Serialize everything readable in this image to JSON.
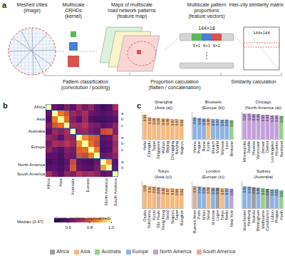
{
  "panel_a": {
    "label": "a",
    "stages": [
      {
        "lines": [
          "Meshed cities",
          "(image)"
        ]
      },
      {
        "lines": [
          "Multiscale",
          "CRHDs",
          "(kernel)"
        ]
      },
      {
        "lines": [
          "Maps of multiscale",
          "road network patterns",
          "(feature map)"
        ]
      },
      {
        "lines": [
          "Multiscale pattern",
          "proportions",
          "(feature vectors)"
        ]
      },
      {
        "lines": [
          "Inter-city similarity matrix"
        ]
      }
    ],
    "vector_size": "144×18",
    "segments": [
      "6×1",
      "6×1",
      "6×1"
    ],
    "matrix_size": "144×144",
    "steps": [
      {
        "lines": [
          "Pattern classification",
          "(convolution / pooling)"
        ]
      },
      {
        "lines": [
          "Proportion calculation",
          "(flatten / concatenation)"
        ]
      },
      {
        "lines": [
          "Similarity calculation"
        ]
      }
    ]
  },
  "chart_data": [
    {
      "type": "heatmap",
      "panel": "b",
      "groups": [
        {
          "name": "Africa",
          "cells": 1
        },
        {
          "name": "Asia",
          "cells": 3
        },
        {
          "name": "Australia",
          "cells": 1
        },
        {
          "name": "Europe",
          "cells": 4
        },
        {
          "name": "North America",
          "cells": 2
        },
        {
          "name": "South America",
          "cells": 1
        }
      ],
      "z": [
        [
          1.0,
          0.62,
          0.58,
          0.66,
          0.6,
          0.7,
          0.64,
          0.68,
          0.6,
          0.55,
          0.58,
          0.72
        ],
        [
          0.62,
          1.0,
          0.86,
          0.8,
          0.7,
          0.66,
          0.72,
          0.62,
          0.6,
          0.58,
          0.6,
          0.64
        ],
        [
          0.58,
          0.86,
          1.0,
          0.84,
          0.66,
          0.6,
          0.7,
          0.58,
          0.56,
          0.55,
          0.57,
          0.6
        ],
        [
          0.66,
          0.8,
          0.84,
          1.0,
          0.72,
          0.7,
          0.74,
          0.66,
          0.64,
          0.6,
          0.62,
          0.68
        ],
        [
          0.6,
          0.7,
          0.66,
          0.72,
          1.0,
          0.68,
          0.7,
          0.64,
          0.62,
          0.78,
          0.8,
          0.66
        ],
        [
          0.7,
          0.66,
          0.6,
          0.7,
          0.68,
          1.0,
          0.88,
          0.82,
          0.8,
          0.6,
          0.62,
          0.74
        ],
        [
          0.64,
          0.72,
          0.7,
          0.74,
          0.7,
          0.88,
          1.0,
          0.84,
          0.78,
          0.58,
          0.6,
          0.7
        ],
        [
          0.68,
          0.62,
          0.58,
          0.66,
          0.64,
          0.82,
          0.84,
          1.0,
          0.86,
          0.56,
          0.58,
          0.72
        ],
        [
          0.6,
          0.6,
          0.56,
          0.64,
          0.62,
          0.8,
          0.78,
          0.86,
          1.0,
          0.62,
          0.64,
          0.68
        ],
        [
          0.55,
          0.58,
          0.55,
          0.6,
          0.78,
          0.6,
          0.58,
          0.56,
          0.62,
          1.0,
          0.9,
          0.6
        ],
        [
          0.58,
          0.6,
          0.57,
          0.62,
          0.8,
          0.62,
          0.6,
          0.58,
          0.64,
          0.9,
          1.0,
          0.62
        ],
        [
          0.72,
          0.64,
          0.6,
          0.68,
          0.66,
          0.74,
          0.7,
          0.72,
          0.68,
          0.6,
          0.62,
          1.0
        ]
      ],
      "zlim": [
        0.47,
        1
      ],
      "colorbar_ticks": [
        0.6,
        0.8,
        {
          "value": 1,
          "label": "1.0"
        }
      ],
      "colorbar_title": "Cosine similarity (normalized)",
      "colorbar_min_label": "Median (0.47)",
      "side_labels": [
        {
          "row": 1,
          "label": "a"
        },
        {
          "row": 2,
          "label": "b"
        },
        {
          "row": 3,
          "label": "c"
        },
        {
          "row": 5,
          "label": "a"
        },
        {
          "row": 6,
          "label": "b"
        },
        {
          "row": 7,
          "label": "c"
        },
        {
          "row": 9,
          "label": "a"
        },
        {
          "row": 10,
          "label": "b"
        }
      ]
    },
    {
      "type": "bar",
      "title": "Shanghai (Asia (a))",
      "categories": [
        "Hefei",
        "Chengdu",
        "Taipei",
        "Singapore",
        "Wuhan",
        "Beijing",
        "Chongqing",
        "Nanjing",
        "Nagoya"
      ],
      "values": [
        0.95,
        0.9,
        0.89,
        0.89,
        0.88,
        0.88,
        0.87,
        0.87,
        0.86
      ],
      "value_labels": [
        "0.95",
        "0.90",
        "0.89",
        "0.89",
        "0.88",
        "0.88",
        "0.87",
        "0.87",
        "0.86"
      ],
      "colors": [
        "#f5b97f",
        "#f5b97f",
        "#f5b97f",
        "#f5b97f",
        "#f5b97f",
        "#f5b97f",
        "#f5b97f",
        "#f5b97f",
        "#f5b97f"
      ],
      "ylim": [
        0.5,
        1
      ],
      "yticks": [
        0.5,
        0.75,
        1
      ],
      "grid": true,
      "data_labels": true,
      "tick_labels": "x"
    },
    {
      "type": "bar",
      "title": "Brussels (Europe (b))",
      "categories": [
        "Vienna",
        "Prague",
        "Rome",
        "Kyoto",
        "Munich",
        "Madrid",
        "Warsaw",
        "Lyon",
        "Brisbane"
      ],
      "values": [
        0.9,
        0.89,
        0.88,
        0.88,
        0.87,
        0.87,
        0.86,
        0.86,
        0.85
      ],
      "value_labels": [
        "0.90",
        "0.89",
        "0.88",
        "0.88",
        "0.87",
        "0.87",
        "0.86",
        "0.86",
        "0.85"
      ],
      "colors": [
        "#8db3e2",
        "#8db3e2",
        "#8db3e2",
        "#f5b97f",
        "#8db3e2",
        "#8db3e2",
        "#8db3e2",
        "#8db3e2",
        "#93d18b"
      ],
      "ylim": [
        0.5,
        1
      ],
      "yticks": [
        0.5,
        0.75,
        1
      ],
      "grid": true,
      "data_labels": true,
      "tick_labels": "x"
    },
    {
      "type": "bar",
      "title": "Chicago (North America (a))",
      "categories": [
        "Minneapolis",
        "Seattle",
        "Phoenix",
        "Vancouver",
        "Denver",
        "Detroit",
        "Los Angeles",
        "Houston",
        "Auckland"
      ],
      "values": [
        0.97,
        0.97,
        0.96,
        0.96,
        0.95,
        0.95,
        0.94,
        0.94,
        0.93
      ],
      "value_labels": [
        "0.97",
        "0.97",
        "0.96",
        "0.96",
        "0.95",
        "0.95",
        "0.94",
        "0.94",
        "0.93"
      ],
      "colors": [
        "#c3a0dc",
        "#c3a0dc",
        "#c3a0dc",
        "#c3a0dc",
        "#c3a0dc",
        "#c3a0dc",
        "#c3a0dc",
        "#c3a0dc",
        "#93d18b"
      ],
      "ylim": [
        0.5,
        1
      ],
      "yticks": [
        0.5,
        0.75,
        1
      ],
      "grid": true,
      "data_labels": true,
      "tick_labels": "x"
    },
    {
      "type": "bar",
      "title": "Tokyo (Asia (c))",
      "categories": [
        "Osaka",
        "Yokohama",
        "Kyoto",
        "São Paulo",
        "Hong Kong",
        "Seoul",
        "Nagoya",
        "Taipei",
        "Bangkok"
      ],
      "values": [
        0.93,
        0.91,
        0.9,
        0.89,
        0.88,
        0.87,
        0.87,
        0.86,
        0.86
      ],
      "value_labels": [
        "0.93",
        "0.91",
        "0.90",
        "0.89",
        "0.88",
        "0.87",
        "0.87",
        "0.86",
        "0.86"
      ],
      "colors": [
        "#f5b97f",
        "#f5b97f",
        "#f5b97f",
        "#e0b09a",
        "#f5b97f",
        "#f5b97f",
        "#f5b97f",
        "#f5b97f",
        "#f5b97f"
      ],
      "ylim": [
        0.5,
        1
      ],
      "yticks": [
        0.5,
        0.75,
        1
      ],
      "grid": true,
      "data_labels": true,
      "tick_labels": "x"
    },
    {
      "type": "bar",
      "title": "London (Europe (c))",
      "categories": [
        "Buenos Aires",
        "Paris",
        "Milan",
        "Seoul",
        "Moscow",
        "Lagos",
        "Tokyo",
        "Berlin",
        "New York"
      ],
      "values": [
        0.91,
        0.9,
        0.89,
        0.89,
        0.88,
        0.88,
        0.87,
        0.87,
        0.86
      ],
      "value_labels": [
        "0.91",
        "0.90",
        "0.89",
        "0.89",
        "0.88",
        "0.88",
        "0.87",
        "0.87",
        "0.86"
      ],
      "colors": [
        "#e0b09a",
        "#8db3e2",
        "#8db3e2",
        "#f5b97f",
        "#8db3e2",
        "#9e9e9e",
        "#f5b97f",
        "#8db3e2",
        "#c3a0dc"
      ],
      "ylim": [
        0.5,
        1
      ],
      "yticks": [
        0.5,
        0.75,
        1
      ],
      "grid": true,
      "data_labels": true,
      "tick_labels": "x"
    },
    {
      "type": "bar",
      "title": "Sydney (Australia)",
      "categories": [
        "Manchester",
        "Hamburg",
        "Nairobi",
        "Birmingham",
        "Melbourne",
        "Casablanca",
        "Lisbon",
        "Prague",
        "Perth"
      ],
      "values": [
        0.91,
        0.9,
        0.89,
        0.88,
        0.87,
        0.86,
        0.85,
        0.85,
        0.83
      ],
      "value_labels": [
        "0.91",
        "0.90",
        "0.89",
        "0.88",
        "0.87",
        "0.86",
        "0.85",
        "0.85",
        "0.83"
      ],
      "colors": [
        "#8db3e2",
        "#8db3e2",
        "#9e9e9e",
        "#8db3e2",
        "#93d18b",
        "#9e9e9e",
        "#8db3e2",
        "#8db3e2",
        "#93d18b"
      ],
      "ylim": [
        0.5,
        1
      ],
      "yticks": [
        0.5,
        0.75,
        1
      ],
      "grid": true,
      "data_labels": true,
      "tick_labels": "x"
    }
  ],
  "panel_c_label": "c",
  "continent_legend": [
    {
      "name": "Africa",
      "color": "#9e9e9e"
    },
    {
      "name": "Asia",
      "color": "#f5b97f"
    },
    {
      "name": "Australia",
      "color": "#93d18b"
    },
    {
      "name": "Europe",
      "color": "#8db3e2"
    },
    {
      "name": "North America",
      "color": "#c3a0dc"
    },
    {
      "name": "South America",
      "color": "#e0b09a"
    }
  ]
}
